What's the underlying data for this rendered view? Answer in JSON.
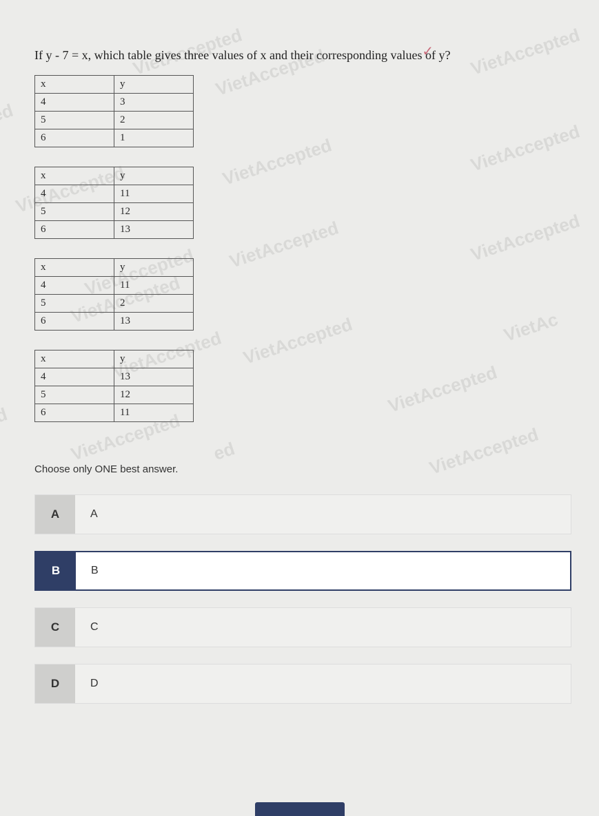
{
  "question": "If y - 7 = x, which table gives three values of x and their corresponding values of y?",
  "tables": [
    {
      "header": [
        "x",
        "y"
      ],
      "rows": [
        [
          "4",
          "3"
        ],
        [
          "5",
          "2"
        ],
        [
          "6",
          "1"
        ]
      ]
    },
    {
      "header": [
        "x",
        "y"
      ],
      "rows": [
        [
          "4",
          "11"
        ],
        [
          "5",
          "12"
        ],
        [
          "6",
          "13"
        ]
      ]
    },
    {
      "header": [
        "x",
        "y"
      ],
      "rows": [
        [
          "4",
          "11"
        ],
        [
          "5",
          "2"
        ],
        [
          "6",
          "13"
        ]
      ]
    },
    {
      "header": [
        "x",
        "y"
      ],
      "rows": [
        [
          "4",
          "13"
        ],
        [
          "5",
          "12"
        ],
        [
          "6",
          "11"
        ]
      ]
    }
  ],
  "instruction": "Choose only ONE best answer.",
  "answers": [
    {
      "letter": "A",
      "text": "A",
      "selected": false
    },
    {
      "letter": "B",
      "text": "B",
      "selected": true
    },
    {
      "letter": "C",
      "text": "C",
      "selected": false
    },
    {
      "letter": "D",
      "text": "D",
      "selected": false
    }
  ],
  "watermarks": {
    "text": "VietAccepted",
    "partial1": "ted",
    "partial2": "ed",
    "partial3": "VietAc",
    "color": "#d9d9d7",
    "fontsize": 26,
    "rotation": -18,
    "positions": [
      {
        "t": 60,
        "l": 190
      },
      {
        "t": 90,
        "l": 310
      },
      {
        "t": 60,
        "l": 680
      },
      {
        "t": 150,
        "l": -20,
        "txt": "ted"
      },
      {
        "t": 200,
        "l": 680
      },
      {
        "t": 220,
        "l": 320
      },
      {
        "t": 260,
        "l": 20
      },
      {
        "t": 340,
        "l": 330
      },
      {
        "t": 330,
        "l": 680
      },
      {
        "t": 380,
        "l": 120
      },
      {
        "t": 420,
        "l": 100
      },
      {
        "t": 480,
        "l": 350
      },
      {
        "t": 460,
        "l": 730,
        "txt": "VietAc"
      },
      {
        "t": 500,
        "l": 160
      },
      {
        "t": 550,
        "l": 560
      },
      {
        "t": 590,
        "l": -20,
        "txt": "ed"
      },
      {
        "t": 620,
        "l": 100
      },
      {
        "t": 640,
        "l": 310,
        "txt": "ed"
      },
      {
        "t": 640,
        "l": 620
      }
    ]
  },
  "tick": "✓",
  "colors": {
    "page_bg": "#ececea",
    "text": "#2a2a2a",
    "table_border": "#555555",
    "answer_bg": "#f0f0ee",
    "answer_badge_bg": "#cfcfcd",
    "selected_border": "#2f3e66",
    "selected_badge_bg": "#2f3e66",
    "selected_badge_fg": "#ffffff",
    "tick_color": "#c96a7a"
  }
}
